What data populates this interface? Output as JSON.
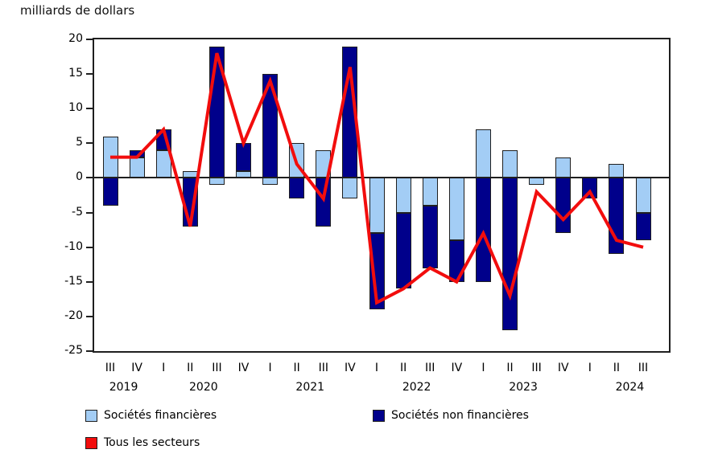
{
  "title": "milliards de dollars",
  "colors": {
    "financial": "#A3CDF5",
    "non_financial": "#00008B",
    "all_sectors": "#F20D0D",
    "axis": "#1F1F1F"
  },
  "legend": [
    {
      "label": "Sociétés financières",
      "color": "#A3CDF5",
      "series_key": "financial"
    },
    {
      "label": "Sociétés non financières",
      "color": "#00008B",
      "series_key": "non_financial"
    },
    {
      "label": "Tous les secteurs",
      "color": "#F20D0D",
      "series_key": "all_sectors"
    }
  ],
  "chart_data": {
    "type": "bar",
    "stacked": true,
    "title": "milliards de dollars",
    "xlabel": "",
    "ylabel": "milliards de dollars",
    "ylim": [
      -25,
      20
    ],
    "ytick_step": 5,
    "yticks": [
      20,
      15,
      10,
      5,
      0,
      -5,
      -10,
      -15,
      -20,
      -25
    ],
    "grid": false,
    "legend_position": "bottom",
    "quarter_labels": [
      "III",
      "IV",
      "I",
      "II",
      "III",
      "IV",
      "I",
      "II",
      "III",
      "IV",
      "I",
      "II",
      "III",
      "IV",
      "I",
      "II",
      "III",
      "IV",
      "I",
      "II",
      "III"
    ],
    "year_groups": [
      {
        "year": "2019",
        "start": 0,
        "end": 1
      },
      {
        "year": "2020",
        "start": 2,
        "end": 5
      },
      {
        "year": "2021",
        "start": 6,
        "end": 9
      },
      {
        "year": "2022",
        "start": 10,
        "end": 13
      },
      {
        "year": "2023",
        "start": 14,
        "end": 17
      },
      {
        "year": "2024",
        "start": 18,
        "end": 20
      }
    ],
    "categories": [
      "III 2019",
      "IV 2019",
      "I 2020",
      "II 2020",
      "III 2020",
      "IV 2020",
      "I 2021",
      "II 2021",
      "III 2021",
      "IV 2021",
      "I 2022",
      "II 2022",
      "III 2022",
      "IV 2022",
      "I 2023",
      "II 2023",
      "III 2023",
      "IV 2023",
      "I 2024",
      "II 2024",
      "III 2024"
    ],
    "series": [
      {
        "name": "Sociétés financières",
        "type": "bar",
        "color": "#A3CDF5",
        "values": [
          6,
          3,
          4,
          1,
          -1,
          1,
          -1,
          5,
          4,
          -3,
          -8,
          -5,
          -4,
          -9,
          7,
          4,
          -1,
          3,
          0,
          2,
          -5
        ]
      },
      {
        "name": "Sociétés non financières",
        "type": "bar",
        "color": "#00008B",
        "values": [
          -4,
          1,
          3,
          -7,
          19,
          4,
          15,
          -3,
          -7,
          19,
          -11,
          -11,
          -9,
          -6,
          -15,
          -22,
          0,
          -8,
          -3,
          -11,
          -4
        ]
      },
      {
        "name": "Tous les secteurs",
        "type": "line",
        "color": "#F20D0D",
        "values": [
          3,
          3,
          7,
          -7,
          18,
          5,
          14,
          2,
          -3,
          16,
          -18,
          -16,
          -13,
          -15,
          -8,
          -17,
          -2,
          -6,
          -2,
          -9,
          -10
        ]
      }
    ]
  }
}
